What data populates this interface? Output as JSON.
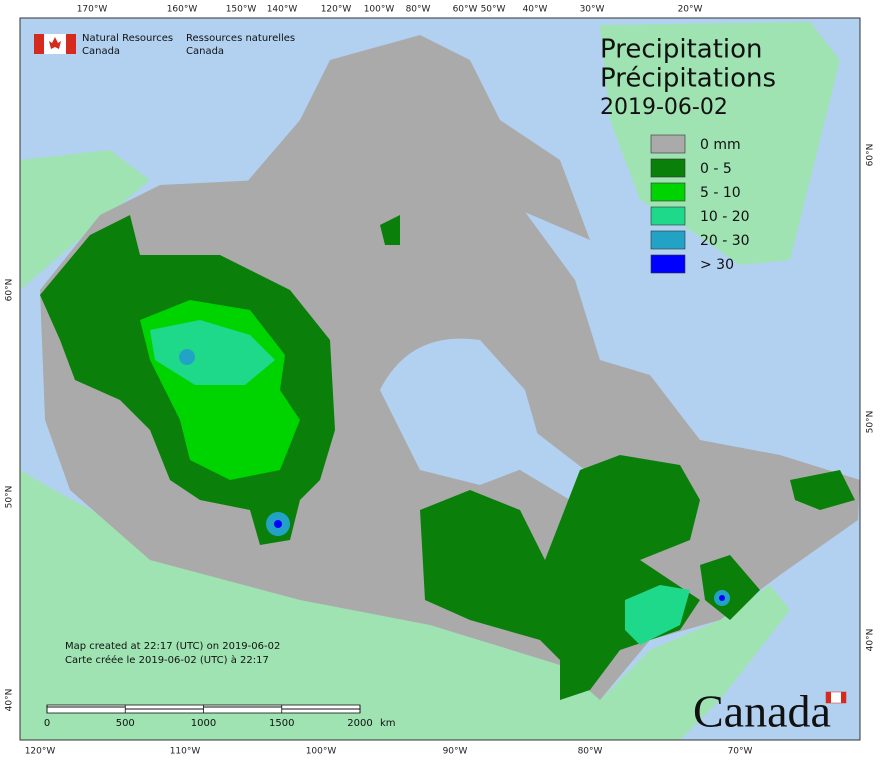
{
  "header": {
    "agency_en": "Natural Resources",
    "agency_en_2": "Canada",
    "agency_fr": "Ressources naturelles",
    "agency_fr_2": "Canada"
  },
  "title": {
    "line1": "Precipitation",
    "line2": "Précipitations",
    "date": "2019-06-02"
  },
  "legend": [
    {
      "label": "0 mm",
      "color": "#aaaaaa"
    },
    {
      "label": "0 - 5",
      "color": "#0a7f0a"
    },
    {
      "label": "5 - 10",
      "color": "#00d400"
    },
    {
      "label": "10 - 20",
      "color": "#1ed98a"
    },
    {
      "label": "20 - 30",
      "color": "#22a3c6"
    },
    {
      "label": "> 30",
      "color": "#0000ff"
    }
  ],
  "top_labels": [
    "170°W",
    "160°W",
    "150°W",
    "140°W",
    "120°W",
    "100°W",
    "80°W",
    "60°W",
    "50°W",
    "40°W",
    "30°W",
    "20°W"
  ],
  "bottom_labels": [
    "120°W",
    "110°W",
    "100°W",
    "90°W",
    "80°W",
    "70°W"
  ],
  "left_labels": [
    "60°N",
    "50°N",
    "40°N"
  ],
  "right_labels": [
    "60°N",
    "50°N",
    "40°N"
  ],
  "credits": [
    "Map created at 22:17 (UTC) on 2019-06-02",
    "Carte créée le 2019-06-02 (UTC) à 22:17"
  ],
  "scale": {
    "ticks": [
      0,
      500,
      1000,
      1500,
      2000
    ],
    "unit": "km"
  },
  "wordmark": "Canada"
}
